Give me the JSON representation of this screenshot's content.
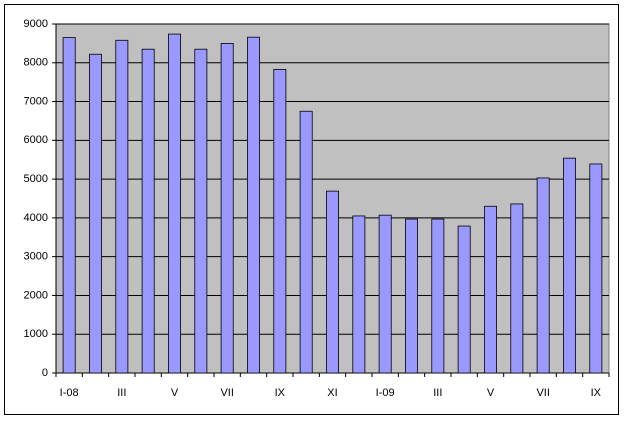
{
  "chart_data": {
    "type": "bar",
    "categories": [
      "I-08",
      null,
      "III",
      null,
      "V",
      null,
      "VII",
      null,
      "IX",
      null,
      "XI",
      null,
      "I-09",
      null,
      "III",
      null,
      "V",
      null,
      "VII",
      null,
      "IX"
    ],
    "values": [
      8650,
      8220,
      8580,
      8350,
      8740,
      8350,
      8500,
      8660,
      7830,
      6750,
      4690,
      4050,
      4070,
      3970,
      3970,
      3790,
      4300,
      4360,
      5030,
      5540,
      5390
    ],
    "color": "#9999ff",
    "ylim": [
      0,
      9000
    ],
    "yticks": [
      0,
      1000,
      2000,
      3000,
      4000,
      5000,
      6000,
      7000,
      8000,
      9000
    ],
    "grid": true
  }
}
